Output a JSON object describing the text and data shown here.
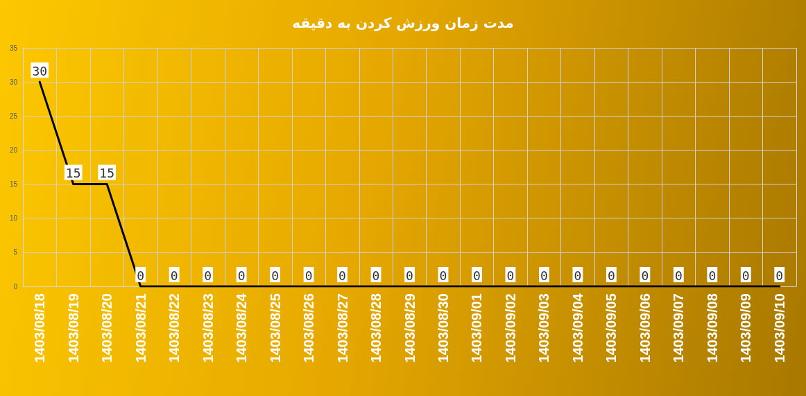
{
  "chart_data": {
    "type": "line",
    "title": "مدت زمان ورزش کردن به دقیقه",
    "categories": [
      "1403/08/18",
      "1403/08/19",
      "1403/08/20",
      "1403/08/21",
      "1403/08/22",
      "1403/08/23",
      "1403/08/24",
      "1403/08/25",
      "1403/08/26",
      "1403/08/27",
      "1403/08/28",
      "1403/08/29",
      "1403/08/30",
      "1403/09/01",
      "1403/09/02",
      "1403/09/03",
      "1403/09/04",
      "1403/09/05",
      "1403/09/06",
      "1403/09/07",
      "1403/09/08",
      "1403/09/09",
      "1403/09/10"
    ],
    "series": [
      {
        "color": "#000000",
        "values": [
          30,
          15,
          15,
          0,
          0,
          0,
          0,
          0,
          0,
          0,
          0,
          0,
          0,
          0,
          0,
          0,
          0,
          0,
          0,
          0,
          0,
          0,
          0
        ]
      }
    ],
    "ylim": [
      0,
      35
    ],
    "yticks": [
      0,
      5,
      10,
      15,
      20,
      25,
      30,
      35
    ],
    "grid": true,
    "marker": "none",
    "line_style": "solid",
    "data_labels": true
  }
}
